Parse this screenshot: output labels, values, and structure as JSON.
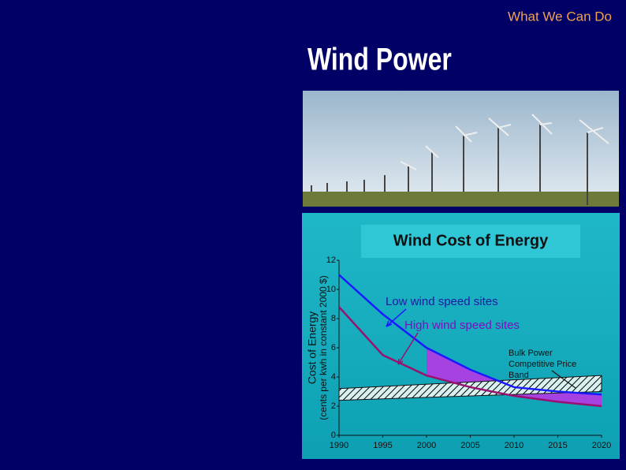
{
  "header": {
    "section": "What We Can Do",
    "title": "Wind Power"
  },
  "chart_data": {
    "type": "line",
    "title": "Wind Cost of Energy",
    "y_label": "Cost of Energy",
    "y_sublabel": "(cents per kwh in constant 2000 $)",
    "x": [
      1990,
      1995,
      2000,
      2005,
      2010,
      2015,
      2020
    ],
    "series": [
      {
        "name": "Low wind speed sites",
        "color": "#1a1aff",
        "values": [
          11,
          8.3,
          6,
          4.5,
          3.3,
          3.0,
          2.8
        ]
      },
      {
        "name": "High wind speed sites",
        "color": "#9a1070",
        "values": [
          8.8,
          5.5,
          4.1,
          3.3,
          2.7,
          2.3,
          2.0
        ]
      }
    ],
    "band": {
      "label": [
        "Bulk Power",
        "Competitive Price",
        "Band"
      ],
      "x": [
        1990,
        2020
      ],
      "low": [
        2.4,
        3.0
      ],
      "high": [
        3.2,
        4.1
      ]
    },
    "xlim": [
      1990,
      2020
    ],
    "xticks": [
      1990,
      1995,
      2000,
      2005,
      2010,
      2015,
      2020
    ],
    "ylim": [
      0,
      12
    ],
    "yticks": [
      0,
      2,
      4,
      6,
      8,
      10,
      12
    ]
  }
}
